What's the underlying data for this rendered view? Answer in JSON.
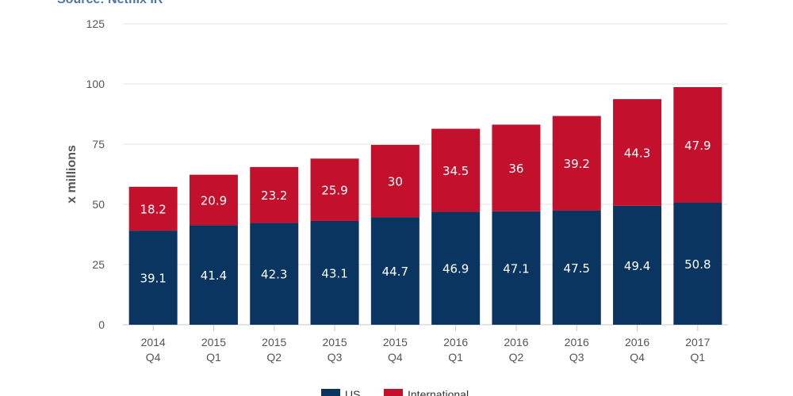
{
  "source": "Source: Netflix IR",
  "chart_data": {
    "type": "bar",
    "stacked": true,
    "categories": [
      [
        "2014",
        "Q4"
      ],
      [
        "2015",
        "Q1"
      ],
      [
        "2015",
        "Q2"
      ],
      [
        "2015",
        "Q3"
      ],
      [
        "2015",
        "Q4"
      ],
      [
        "2016",
        "Q1"
      ],
      [
        "2016",
        "Q2"
      ],
      [
        "2016",
        "Q3"
      ],
      [
        "2016",
        "Q4"
      ],
      [
        "2017",
        "Q1"
      ]
    ],
    "series": [
      {
        "name": "US",
        "color": "#0a3561",
        "values": [
          39.1,
          41.4,
          42.3,
          43.1,
          44.7,
          46.9,
          47.1,
          47.5,
          49.4,
          50.8
        ]
      },
      {
        "name": "International",
        "color": "#c3102d",
        "values": [
          18.2,
          20.9,
          23.2,
          25.9,
          30,
          34.5,
          36,
          39.2,
          44.3,
          47.9
        ]
      }
    ],
    "ylabel": "x millions",
    "yticks": [
      0,
      25,
      50,
      75,
      100,
      125
    ],
    "ylim": [
      0,
      125
    ],
    "grid": true,
    "legend": "bottom"
  }
}
